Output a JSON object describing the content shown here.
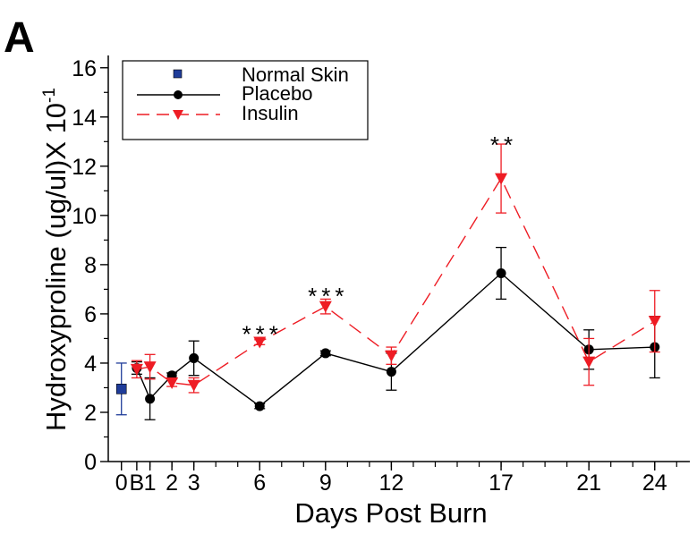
{
  "panel_label": "A",
  "chart_data": {
    "type": "line",
    "title": "",
    "xlabel": "Days Post Burn",
    "ylabel": "Hydroxyproline (ug/ul)X 10",
    "ylabel_superscript": "-1",
    "ylim": [
      0,
      16.5
    ],
    "yticks": [
      0,
      2,
      4,
      6,
      8,
      10,
      12,
      14,
      16
    ],
    "x_tick_labels": [
      "0",
      "B",
      "1",
      "2",
      "3",
      "6",
      "9",
      "12",
      "17",
      "21",
      "24"
    ],
    "x_tick_days": [
      -1.3,
      -0.6,
      0,
      1,
      2,
      5,
      8,
      11,
      16,
      20,
      23
    ],
    "xlim": [
      -1.9,
      24.6
    ],
    "grid": false,
    "legend": {
      "position": "top-left"
    },
    "series": [
      {
        "name": "Normal Skin",
        "color": "#1f3c99",
        "marker": "square",
        "line": "none",
        "points": [
          {
            "x": -1.3,
            "y": 2.95,
            "err": 1.05
          }
        ]
      },
      {
        "name": "Placebo",
        "color": "#000000",
        "marker": "circle",
        "line": "solid",
        "points": [
          {
            "x": -0.6,
            "y": 3.8,
            "err": 0.25
          },
          {
            "x": 0,
            "y": 2.55,
            "err": 0.85
          },
          {
            "x": 1,
            "y": 3.5,
            "err": 0.1
          },
          {
            "x": 2,
            "y": 4.2,
            "err": 0.7
          },
          {
            "x": 5,
            "y": 2.25,
            "err": 0.1
          },
          {
            "x": 8,
            "y": 4.4,
            "err": 0.1
          },
          {
            "x": 11,
            "y": 3.65,
            "err": 0.75
          },
          {
            "x": 16,
            "y": 7.65,
            "err": 1.05
          },
          {
            "x": 20,
            "y": 4.55,
            "err": 0.8
          },
          {
            "x": 23,
            "y": 4.65,
            "err": 1.25
          }
        ]
      },
      {
        "name": "Insulin",
        "color": "#ee1c24",
        "marker": "triangle-down",
        "line": "dashed",
        "points": [
          {
            "x": -0.6,
            "y": 3.75,
            "err": 0.35
          },
          {
            "x": 0,
            "y": 3.85,
            "err": 0.5
          },
          {
            "x": 1,
            "y": 3.2,
            "err": 0.15
          },
          {
            "x": 2,
            "y": 3.1,
            "err": 0.3
          },
          {
            "x": 5,
            "y": 4.85,
            "err": 0.1
          },
          {
            "x": 8,
            "y": 6.3,
            "err": 0.3
          },
          {
            "x": 11,
            "y": 4.3,
            "err": 0.35
          },
          {
            "x": 16,
            "y": 11.5,
            "err": 1.4
          },
          {
            "x": 20,
            "y": 4.05,
            "err": 0.95
          },
          {
            "x": 23,
            "y": 5.7,
            "err": 1.25
          }
        ]
      }
    ],
    "annotations": [
      {
        "text": "***",
        "x": 5,
        "y": 5.5
      },
      {
        "text": "***",
        "x": 8,
        "y": 7.05
      },
      {
        "text": "**",
        "x": 16,
        "y": 13.2
      }
    ]
  }
}
